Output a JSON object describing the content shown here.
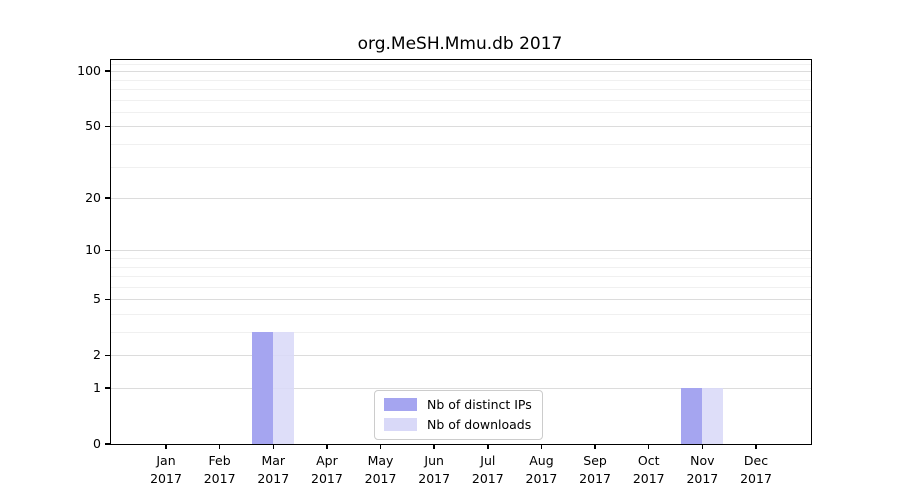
{
  "chart_data": {
    "type": "bar",
    "title": "org.MeSH.Mmu.db 2017",
    "categories": [
      "Jan 2017",
      "Feb 2017",
      "Mar 2017",
      "Apr 2017",
      "May 2017",
      "Jun 2017",
      "Jul 2017",
      "Aug 2017",
      "Sep 2017",
      "Oct 2017",
      "Nov 2017",
      "Dec 2017"
    ],
    "series": [
      {
        "name": "Nb of distinct IPs",
        "color": "#a5a5f0",
        "values": [
          0,
          0,
          3,
          0,
          0,
          0,
          0,
          0,
          0,
          0,
          1,
          0
        ]
      },
      {
        "name": "Nb of downloads",
        "color": "#d9d9f8",
        "values": [
          0,
          0,
          3,
          0,
          0,
          0,
          0,
          0,
          0,
          0,
          1,
          0
        ]
      }
    ],
    "xlabel": "",
    "ylabel": "",
    "y_scale": "log1p",
    "y_axis_ticks": [
      0,
      1,
      2,
      5,
      10,
      20,
      50,
      100
    ],
    "y_minor_gridlines": [
      3,
      4,
      6,
      7,
      8,
      9,
      30,
      40,
      60,
      70,
      80,
      90,
      110
    ],
    "y_top": 115,
    "ylim": [
      0,
      115
    ],
    "grid": "horizontal major+minor",
    "legend_position": "lower center inside plot"
  }
}
